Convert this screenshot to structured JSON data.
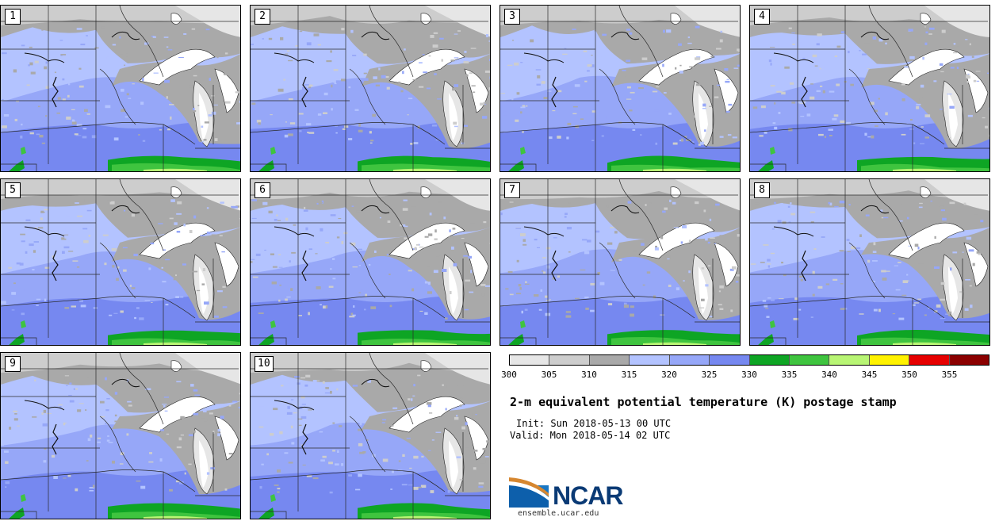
{
  "panels": [
    {
      "label": "1"
    },
    {
      "label": "2"
    },
    {
      "label": "3"
    },
    {
      "label": "4"
    },
    {
      "label": "5"
    },
    {
      "label": "6"
    },
    {
      "label": "7"
    },
    {
      "label": "8"
    },
    {
      "label": "9"
    },
    {
      "label": "10"
    }
  ],
  "colorbar": {
    "ticks": [
      "300",
      "305",
      "310",
      "315",
      "320",
      "325",
      "330",
      "335",
      "340",
      "345",
      "350",
      "355"
    ],
    "colors": [
      "#e6e6e6",
      "#cdcdcd",
      "#a9a9a9",
      "#b3c3ff",
      "#96a7f8",
      "#7688f0",
      "#0ea524",
      "#3fc43f",
      "#b8f574",
      "#fff200",
      "#e60000",
      "#8b0000"
    ]
  },
  "title": "2-m equivalent potential temperature (K) postage stamp",
  "init": "Init: Sun 2018-05-13 00 UTC",
  "valid": "Valid: Mon 2018-05-14 02 UTC",
  "logo": {
    "text": "NCAR",
    "url": "ensemble.ucar.edu"
  }
}
